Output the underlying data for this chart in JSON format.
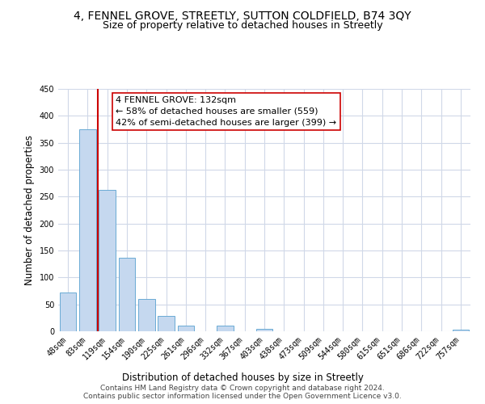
{
  "title": "4, FENNEL GROVE, STREETLY, SUTTON COLDFIELD, B74 3QY",
  "subtitle": "Size of property relative to detached houses in Streetly",
  "xlabel": "Distribution of detached houses by size in Streetly",
  "ylabel": "Number of detached properties",
  "bar_labels": [
    "48sqm",
    "83sqm",
    "119sqm",
    "154sqm",
    "190sqm",
    "225sqm",
    "261sqm",
    "296sqm",
    "332sqm",
    "367sqm",
    "403sqm",
    "438sqm",
    "473sqm",
    "509sqm",
    "544sqm",
    "580sqm",
    "615sqm",
    "651sqm",
    "686sqm",
    "722sqm",
    "757sqm"
  ],
  "bar_values": [
    72,
    375,
    262,
    137,
    60,
    29,
    11,
    0,
    11,
    0,
    5,
    0,
    0,
    0,
    0,
    0,
    0,
    0,
    0,
    0,
    3
  ],
  "bar_color": "#c5d8ef",
  "bar_edge_color": "#6aaad4",
  "ylim": [
    0,
    450
  ],
  "yticks": [
    0,
    50,
    100,
    150,
    200,
    250,
    300,
    350,
    400,
    450
  ],
  "property_line_color": "#cc0000",
  "annotation_title": "4 FENNEL GROVE: 132sqm",
  "annotation_line1": "← 58% of detached houses are smaller (559)",
  "annotation_line2": "42% of semi-detached houses are larger (399) →",
  "footer_line1": "Contains HM Land Registry data © Crown copyright and database right 2024.",
  "footer_line2": "Contains public sector information licensed under the Open Government Licence v3.0.",
  "background_color": "#ffffff",
  "grid_color": "#d0d8e8",
  "title_fontsize": 10,
  "subtitle_fontsize": 9,
  "axis_label_fontsize": 8.5,
  "tick_fontsize": 7,
  "annotation_fontsize": 8,
  "footer_fontsize": 6.5
}
